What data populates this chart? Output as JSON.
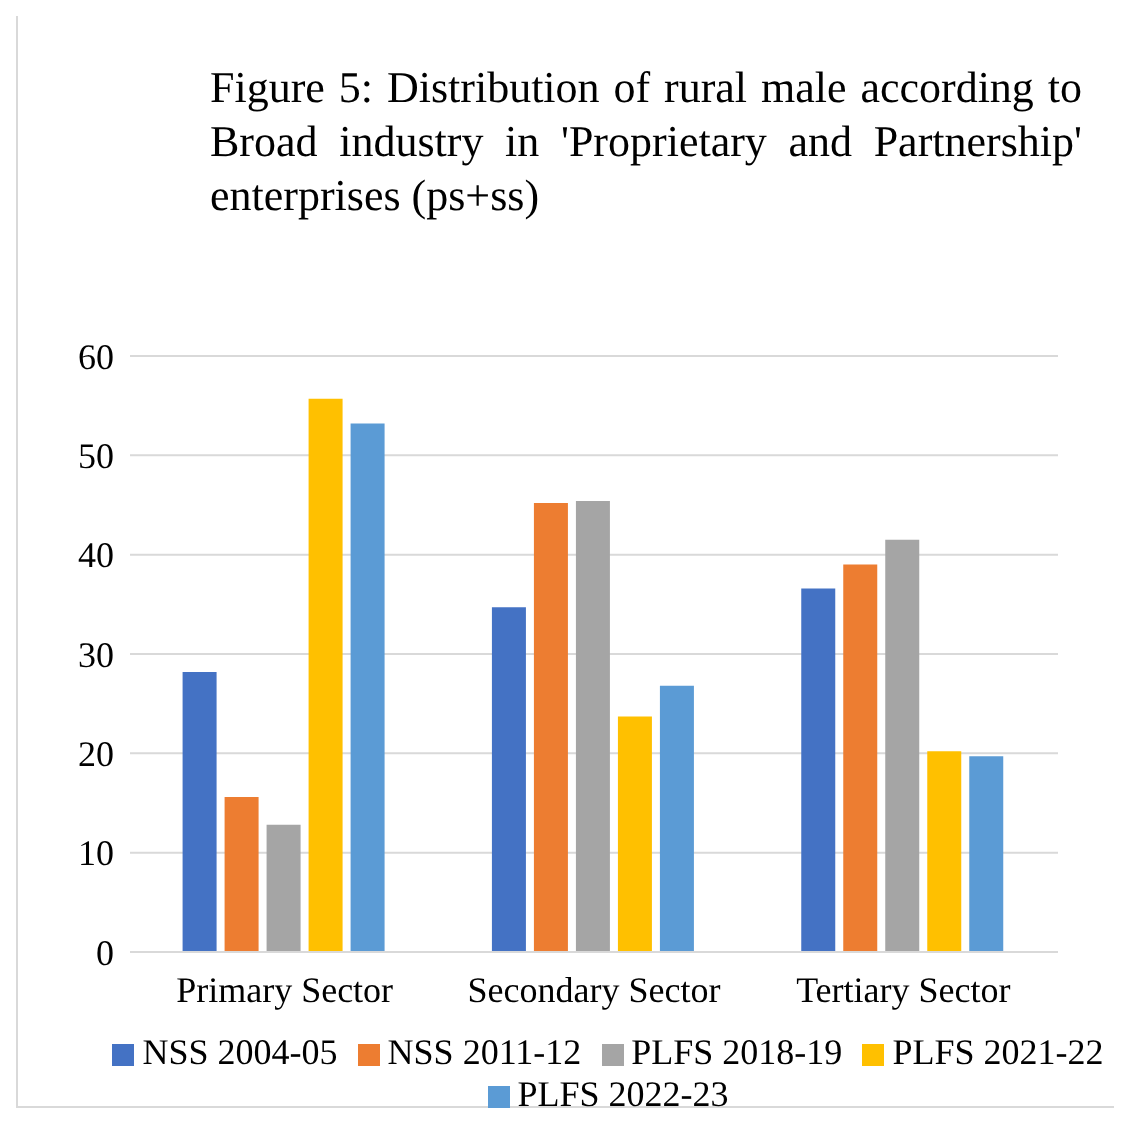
{
  "chart_data": {
    "type": "bar",
    "title": "Figure 5: Distribution of rural male according to Broad industry in 'Proprietary and Partnership' enterprises (ps+ss)",
    "categories": [
      "Primary Sector",
      "Secondary Sector",
      "Tertiary Sector"
    ],
    "series": [
      {
        "name": "NSS 2004-05",
        "color": "#4472c4",
        "values": [
          28.2,
          34.7,
          36.6
        ]
      },
      {
        "name": "NSS 2011-12",
        "color": "#ed7d31",
        "values": [
          15.6,
          45.2,
          39.0
        ]
      },
      {
        "name": "PLFS 2018-19",
        "color": "#a5a5a5",
        "values": [
          12.8,
          45.4,
          41.5
        ]
      },
      {
        "name": "PLFS 2021-22",
        "color": "#ffc000",
        "values": [
          55.7,
          23.7,
          20.2
        ]
      },
      {
        "name": "PLFS 2022-23",
        "color": "#5b9bd5",
        "values": [
          53.2,
          26.8,
          19.7
        ]
      }
    ],
    "ylim": [
      0,
      60
    ],
    "yticks": [
      0,
      10,
      20,
      30,
      40,
      50,
      60
    ],
    "grid": "y",
    "legend": "bottom"
  }
}
